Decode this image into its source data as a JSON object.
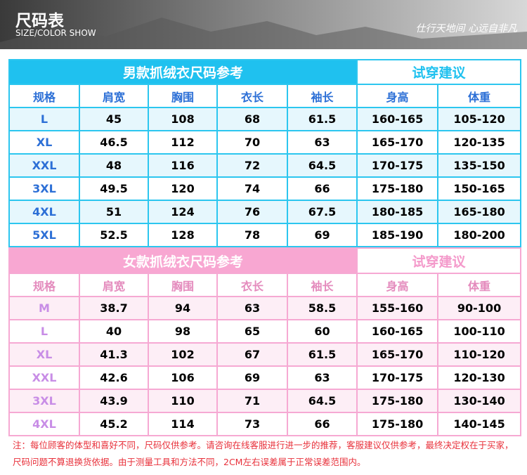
{
  "header": {
    "title": "尺码表",
    "subtitle": "SIZE/COLOR SHOW",
    "slogan": "仕行天地间 心远自非凡"
  },
  "tables": [
    {
      "title": "男款抓绒衣尺码参考",
      "advice_title": "试穿建议",
      "columns": [
        "规格",
        "肩宽",
        "胸围",
        "衣长",
        "袖长",
        "身高",
        "体重"
      ],
      "rows": [
        [
          "L",
          45,
          108,
          68,
          61.5,
          "160-165",
          "105-120"
        ],
        [
          "XL",
          46.5,
          112,
          70,
          63,
          "165-170",
          "120-135"
        ],
        [
          "XXL",
          48,
          116,
          72,
          64.5,
          "170-175",
          "135-150"
        ],
        [
          "3XL",
          49.5,
          120,
          74,
          66,
          "175-180",
          "150-165"
        ],
        [
          "4XL",
          51,
          124,
          76,
          67.5,
          "180-185",
          "165-180"
        ],
        [
          "5XL",
          52.5,
          128,
          78,
          69,
          "185-190",
          "180-200"
        ]
      ]
    },
    {
      "title": "女款抓绒衣尺码参考",
      "advice_title": "试穿建议",
      "columns": [
        "规格",
        "肩宽",
        "胸围",
        "衣长",
        "袖长",
        "身高",
        "体重"
      ],
      "rows": [
        [
          "M",
          38.7,
          94,
          63,
          58.5,
          "155-160",
          "90-100"
        ],
        [
          "L",
          40,
          98,
          65,
          60,
          "160-165",
          "100-110"
        ],
        [
          "XL",
          41.3,
          102,
          67,
          61.5,
          "165-170",
          "110-120"
        ],
        [
          "XXL",
          42.6,
          106,
          69,
          63,
          "170-175",
          "120-130"
        ],
        [
          "3XL",
          43.9,
          110,
          71,
          64.5,
          "175-180",
          "130-140"
        ],
        [
          "4XL",
          45.2,
          114,
          73,
          66,
          "175-180",
          "140-145"
        ]
      ]
    }
  ],
  "note": "注：每位顾客的体型和喜好不同，尺码仅供参考。请咨询在线客服进行进一步的推荐，客服建议仅供参考，最终决定权在于买家，尺码问题不算退换货依据。由于测量工具和方法不同，2CM左右误差属于正常误差范围内。"
}
